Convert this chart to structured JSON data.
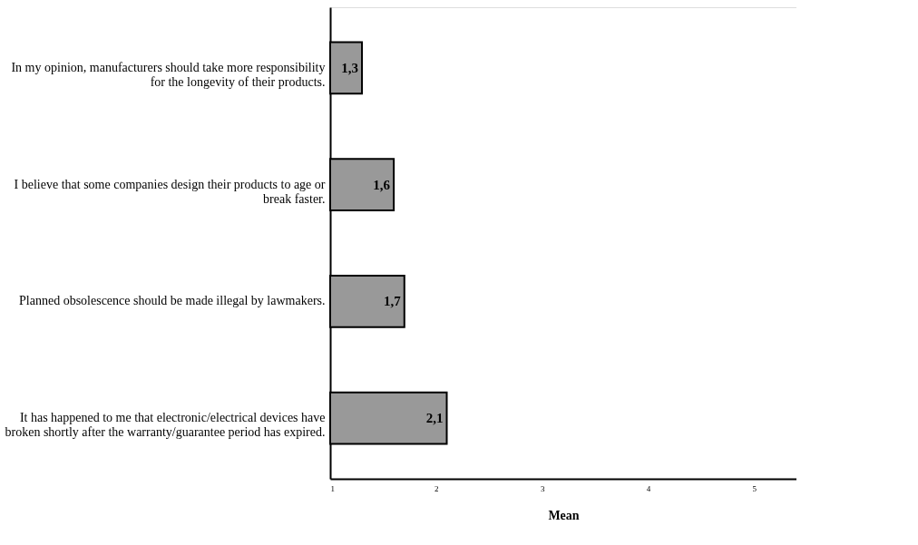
{
  "chart_data": {
    "type": "bar",
    "orientation": "horizontal",
    "xlabel": "Mean",
    "categories": [
      "In my opinion, manufacturers should take more responsibility\nfor the longevity of their products.",
      "I believe that some companies design their products to age or\nbreak faster.",
      "Planned obsolescence should be made illegal by lawmakers.",
      "It has happened to me that electronic/electrical devices have\nbroken shortly after the warranty/guarantee period has expired."
    ],
    "values": [
      1.3,
      1.6,
      1.7,
      2.1
    ],
    "value_labels": [
      "1,3",
      "1,6",
      "1,7",
      "2,1"
    ],
    "color": "#999999",
    "xlim": [
      1,
      5.4
    ],
    "xticks": [
      1,
      2,
      3,
      4,
      5
    ],
    "grid": false
  }
}
